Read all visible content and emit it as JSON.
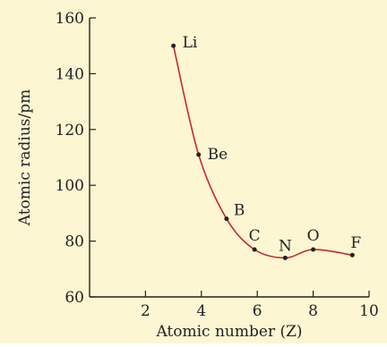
{
  "chart_data": {
    "type": "line",
    "title": "",
    "xlabel": "Atomic number (Z)",
    "ylabel": "Atomic radius/pm",
    "xlim": [
      0,
      10
    ],
    "ylim": [
      60,
      160
    ],
    "xticks": [
      2,
      4,
      6,
      8,
      10
    ],
    "yticks": [
      60,
      80,
      100,
      120,
      140,
      160
    ],
    "grid": false,
    "series": [
      {
        "labels": [
          "Li",
          "Be",
          "B",
          "C",
          "N",
          "O",
          "F"
        ],
        "x": [
          3,
          3.9,
          4.9,
          5.9,
          7.0,
          8.0,
          9.4
        ],
        "y": [
          150,
          111,
          88,
          77,
          74,
          77,
          75
        ]
      }
    ]
  },
  "colors": {
    "background": "#fdf6d3",
    "curve": "#c8292c",
    "axis": "#222222",
    "point": "#222222"
  }
}
